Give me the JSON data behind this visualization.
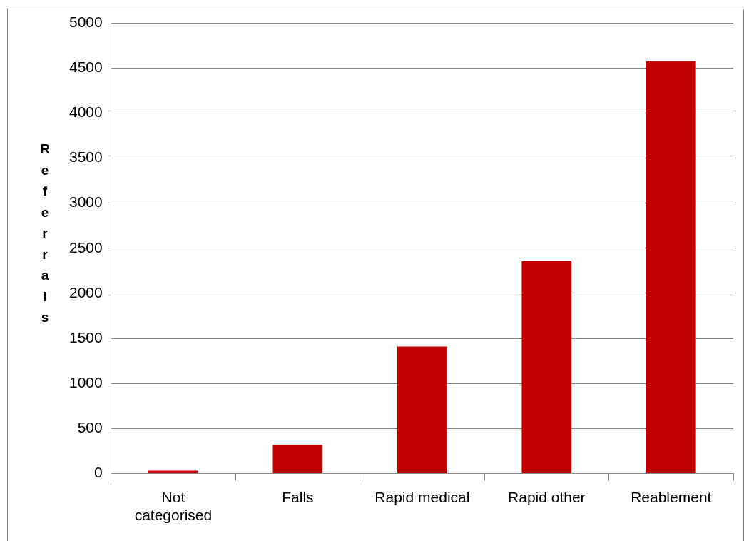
{
  "chart_data": {
    "type": "bar",
    "ylabel": "Referrals",
    "categories": [
      "Not categorised",
      "Falls",
      "Rapid medical",
      "Rapid other",
      "Reablement"
    ],
    "values": [
      32,
      320,
      1410,
      2355,
      4575
    ],
    "color": "#c00000",
    "ylim": [
      0,
      5000
    ],
    "yticks": [
      0,
      500,
      1000,
      1500,
      2000,
      2500,
      3000,
      3500,
      4000,
      4500,
      5000
    ],
    "grid": "y",
    "legend": false
  }
}
